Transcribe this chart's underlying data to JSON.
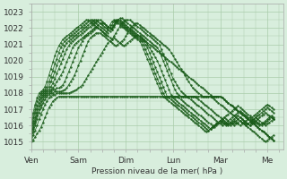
{
  "bg_color": "#d8eedd",
  "grid_color": "#aaccaa",
  "line_color": "#1a5c1a",
  "xlabel": "Pression niveau de la mer( hPa )",
  "ylim": [
    1014.5,
    1023.5
  ],
  "yticks": [
    1015,
    1016,
    1017,
    1018,
    1019,
    1020,
    1021,
    1022,
    1023
  ],
  "day_labels": [
    "Ven",
    "Sam",
    "Dim",
    "Lun",
    "Mar",
    "Me"
  ],
  "day_positions": [
    0,
    24,
    48,
    72,
    96,
    120
  ],
  "xlim": [
    0,
    128
  ],
  "series": [
    [
      1015.0,
      1015.1,
      1015.3,
      1015.5,
      1015.7,
      1015.9,
      1016.2,
      1016.5,
      1016.8,
      1017.1,
      1017.3,
      1017.5,
      1017.6,
      1017.7,
      1017.8,
      1017.8,
      1017.8,
      1017.8,
      1017.8,
      1017.8,
      1017.8,
      1017.8,
      1017.8,
      1017.8,
      1017.8,
      1017.8,
      1017.8,
      1017.8,
      1017.8,
      1017.8,
      1017.8,
      1017.8,
      1017.8,
      1017.8,
      1017.8,
      1017.8,
      1017.8,
      1017.8,
      1017.8,
      1017.8,
      1017.8,
      1017.8,
      1017.8,
      1017.8,
      1017.8,
      1017.8,
      1017.8,
      1017.8,
      1017.8,
      1017.8,
      1017.8,
      1017.8,
      1017.8,
      1017.8,
      1017.8,
      1017.8,
      1017.8,
      1017.8,
      1017.8,
      1017.8,
      1017.8,
      1017.8,
      1017.8,
      1017.8,
      1017.8,
      1017.8,
      1017.8,
      1017.8,
      1017.8,
      1017.8,
      1017.8,
      1017.8,
      1017.8,
      1017.8,
      1017.8,
      1017.8,
      1017.8,
      1017.8,
      1017.8,
      1017.8,
      1017.8,
      1017.8,
      1017.8,
      1017.8,
      1017.8,
      1017.8,
      1017.8,
      1017.8,
      1017.8,
      1017.8,
      1017.8,
      1017.8,
      1017.8,
      1017.8,
      1017.8,
      1017.8,
      1017.75,
      1017.7,
      1017.6,
      1017.5,
      1017.4,
      1017.3,
      1017.2,
      1017.1,
      1017.0,
      1016.9,
      1016.8,
      1016.7,
      1016.6,
      1016.5,
      1016.4,
      1016.3,
      1016.2,
      1016.1,
      1016.0,
      1015.9,
      1015.8,
      1015.7,
      1015.6,
      1015.5,
      1015.4,
      1015.3,
      1015.2,
      1015.1
    ],
    [
      1015.2,
      1015.4,
      1015.7,
      1016.0,
      1016.4,
      1016.7,
      1017.0,
      1017.3,
      1017.5,
      1017.7,
      1017.8,
      1017.9,
      1017.9,
      1018.0,
      1018.0,
      1018.0,
      1018.0,
      1018.0,
      1018.0,
      1018.0,
      1018.05,
      1018.1,
      1018.15,
      1018.2,
      1018.3,
      1018.4,
      1018.5,
      1018.7,
      1018.9,
      1019.1,
      1019.3,
      1019.5,
      1019.7,
      1019.9,
      1020.1,
      1020.3,
      1020.5,
      1020.7,
      1020.9,
      1021.1,
      1021.2,
      1021.3,
      1021.4,
      1021.3,
      1021.2,
      1021.1,
      1021.0,
      1020.9,
      1021.0,
      1021.1,
      1021.2,
      1021.3,
      1021.4,
      1021.5,
      1021.6,
      1021.5,
      1021.4,
      1021.3,
      1021.2,
      1021.1,
      1021.0,
      1020.9,
      1020.8,
      1020.7,
      1020.6,
      1020.5,
      1020.4,
      1020.3,
      1020.2,
      1020.1,
      1020.0,
      1019.9,
      1019.8,
      1019.7,
      1019.6,
      1019.5,
      1019.4,
      1019.3,
      1019.2,
      1019.1,
      1019.0,
      1018.9,
      1018.8,
      1018.7,
      1018.6,
      1018.5,
      1018.4,
      1018.3,
      1018.2,
      1018.1,
      1018.0,
      1017.9,
      1017.8,
      1017.8,
      1017.8,
      1017.8,
      1017.8,
      1017.7,
      1017.6,
      1017.5,
      1017.4,
      1017.3,
      1017.2,
      1017.1,
      1017.0,
      1016.9,
      1016.8,
      1016.7,
      1016.6,
      1016.5,
      1016.4,
      1016.3,
      1016.2,
      1016.1,
      1016.0,
      1015.9,
      1015.8,
      1015.7,
      1015.6,
      1015.5,
      1015.4,
      1015.3,
      1015.2,
      1015.1
    ],
    [
      1015.3,
      1015.6,
      1016.0,
      1016.4,
      1016.8,
      1017.1,
      1017.4,
      1017.6,
      1017.8,
      1017.9,
      1018.0,
      1018.0,
      1018.1,
      1018.1,
      1018.1,
      1018.1,
      1018.15,
      1018.2,
      1018.3,
      1018.5,
      1018.7,
      1018.9,
      1019.1,
      1019.4,
      1019.7,
      1020.0,
      1020.3,
      1020.6,
      1020.9,
      1021.2,
      1021.4,
      1021.5,
      1021.6,
      1021.7,
      1021.7,
      1021.7,
      1021.6,
      1021.5,
      1021.4,
      1021.3,
      1021.2,
      1021.1,
      1021.0,
      1020.9,
      1021.0,
      1021.1,
      1021.2,
      1021.3,
      1021.5,
      1021.7,
      1021.9,
      1022.1,
      1022.2,
      1022.3,
      1022.3,
      1022.2,
      1022.1,
      1022.0,
      1021.9,
      1021.8,
      1021.7,
      1021.6,
      1021.5,
      1021.4,
      1021.3,
      1021.2,
      1021.1,
      1021.0,
      1020.9,
      1020.8,
      1020.7,
      1020.5,
      1020.3,
      1020.1,
      1019.9,
      1019.7,
      1019.5,
      1019.3,
      1019.1,
      1018.9,
      1018.7,
      1018.5,
      1018.3,
      1018.2,
      1018.1,
      1018.0,
      1017.9,
      1017.8,
      1017.8,
      1017.8,
      1017.8,
      1017.8,
      1017.7,
      1017.6,
      1017.5,
      1017.4,
      1017.3,
      1017.2,
      1017.1,
      1017.0,
      1016.9,
      1016.8,
      1016.7,
      1016.6,
      1016.5,
      1016.4,
      1016.3,
      1016.2,
      1016.1,
      1016.0,
      1015.9,
      1015.8,
      1015.7,
      1015.6,
      1015.5,
      1015.4,
      1015.3,
      1015.2,
      1015.1,
      1015.0,
      1015.1,
      1015.2,
      1015.3,
      1015.4
    ],
    [
      1015.4,
      1015.8,
      1016.2,
      1016.6,
      1017.0,
      1017.3,
      1017.6,
      1017.8,
      1017.9,
      1018.0,
      1018.1,
      1018.2,
      1018.2,
      1018.3,
      1018.3,
      1018.4,
      1018.5,
      1018.7,
      1019.0,
      1019.3,
      1019.6,
      1019.9,
      1020.2,
      1020.5,
      1020.8,
      1021.0,
      1021.2,
      1021.4,
      1021.5,
      1021.6,
      1021.7,
      1021.8,
      1021.9,
      1022.0,
      1022.0,
      1021.9,
      1021.8,
      1021.7,
      1021.6,
      1021.5,
      1021.4,
      1021.3,
      1021.5,
      1021.7,
      1021.9,
      1022.1,
      1022.3,
      1022.4,
      1022.5,
      1022.5,
      1022.5,
      1022.4,
      1022.3,
      1022.2,
      1022.1,
      1022.0,
      1021.9,
      1021.8,
      1021.7,
      1021.6,
      1021.5,
      1021.4,
      1021.3,
      1021.2,
      1021.1,
      1021.0,
      1020.7,
      1020.4,
      1020.1,
      1019.8,
      1019.5,
      1019.2,
      1018.9,
      1018.7,
      1018.5,
      1018.3,
      1018.1,
      1018.0,
      1017.9,
      1017.8,
      1017.8,
      1017.8,
      1017.8,
      1017.8,
      1017.7,
      1017.6,
      1017.5,
      1017.4,
      1017.3,
      1017.2,
      1017.1,
      1017.0,
      1016.9,
      1016.8,
      1016.7,
      1016.6,
      1016.5,
      1016.4,
      1016.3,
      1016.2,
      1016.1,
      1016.0,
      1016.1,
      1016.2,
      1016.3,
      1016.4,
      1016.5,
      1016.4,
      1016.3,
      1016.2,
      1016.1,
      1016.0,
      1016.1,
      1016.2,
      1016.3,
      1016.2,
      1016.1,
      1016.0,
      1016.1,
      1016.2,
      1016.3,
      1016.4,
      1016.5,
      1016.4,
      1016.3,
      1016.2
    ],
    [
      1015.5,
      1015.9,
      1016.3,
      1016.8,
      1017.2,
      1017.5,
      1017.8,
      1017.9,
      1018.0,
      1018.1,
      1018.2,
      1018.3,
      1018.5,
      1018.7,
      1018.9,
      1019.1,
      1019.3,
      1019.6,
      1019.9,
      1020.2,
      1020.5,
      1020.8,
      1021.0,
      1021.1,
      1021.2,
      1021.3,
      1021.4,
      1021.5,
      1021.6,
      1021.7,
      1021.8,
      1021.9,
      1022.0,
      1022.1,
      1022.2,
      1022.3,
      1022.3,
      1022.3,
      1022.2,
      1022.1,
      1022.0,
      1021.9,
      1022.1,
      1022.3,
      1022.5,
      1022.6,
      1022.6,
      1022.5,
      1022.4,
      1022.3,
      1022.2,
      1022.1,
      1022.0,
      1021.9,
      1021.8,
      1021.7,
      1021.6,
      1021.5,
      1021.4,
      1021.3,
      1021.2,
      1021.1,
      1021.0,
      1020.9,
      1020.8,
      1020.6,
      1020.3,
      1020.0,
      1019.7,
      1019.4,
      1019.1,
      1018.8,
      1018.5,
      1018.2,
      1018.0,
      1017.9,
      1017.8,
      1017.8,
      1017.8,
      1017.8,
      1017.7,
      1017.6,
      1017.5,
      1017.4,
      1017.3,
      1017.2,
      1017.1,
      1017.0,
      1016.9,
      1016.8,
      1016.7,
      1016.6,
      1016.5,
      1016.4,
      1016.3,
      1016.2,
      1016.1,
      1016.0,
      1016.1,
      1016.2,
      1016.3,
      1016.2,
      1016.1,
      1016.0,
      1016.1,
      1016.2,
      1016.3,
      1016.2,
      1016.1,
      1016.0,
      1016.1,
      1016.2,
      1016.3,
      1016.4,
      1016.5,
      1016.4,
      1016.3,
      1016.2,
      1016.1,
      1016.0,
      1016.1,
      1016.2,
      1016.3,
      1016.4
    ],
    [
      1015.6,
      1016.1,
      1016.5,
      1017.0,
      1017.4,
      1017.7,
      1017.9,
      1018.0,
      1018.1,
      1018.2,
      1018.4,
      1018.6,
      1018.9,
      1019.2,
      1019.5,
      1019.8,
      1020.1,
      1020.4,
      1020.7,
      1020.9,
      1021.1,
      1021.2,
      1021.3,
      1021.4,
      1021.5,
      1021.6,
      1021.7,
      1021.8,
      1021.9,
      1022.0,
      1022.1,
      1022.2,
      1022.3,
      1022.4,
      1022.5,
      1022.5,
      1022.4,
      1022.3,
      1022.2,
      1022.1,
      1022.0,
      1021.9,
      1022.2,
      1022.4,
      1022.5,
      1022.5,
      1022.4,
      1022.3,
      1022.2,
      1022.1,
      1022.0,
      1021.9,
      1021.8,
      1021.7,
      1021.6,
      1021.5,
      1021.4,
      1021.3,
      1021.2,
      1021.0,
      1020.8,
      1020.6,
      1020.4,
      1020.2,
      1020.0,
      1019.7,
      1019.4,
      1019.1,
      1018.8,
      1018.5,
      1018.2,
      1017.9,
      1017.8,
      1017.8,
      1017.8,
      1017.7,
      1017.6,
      1017.5,
      1017.4,
      1017.3,
      1017.2,
      1017.1,
      1017.0,
      1016.9,
      1016.8,
      1016.7,
      1016.6,
      1016.5,
      1016.4,
      1016.3,
      1016.2,
      1016.1,
      1016.0,
      1015.9,
      1016.0,
      1016.1,
      1016.2,
      1016.3,
      1016.2,
      1016.1,
      1016.0,
      1016.1,
      1016.2,
      1016.3,
      1016.2,
      1016.1,
      1016.0,
      1016.1,
      1016.2,
      1016.3,
      1016.4,
      1016.5,
      1016.4,
      1016.3,
      1016.2,
      1016.1,
      1016.0,
      1016.1,
      1016.2,
      1016.3,
      1016.4,
      1016.5,
      1016.6,
      1016.5
    ],
    [
      1015.8,
      1016.3,
      1016.8,
      1017.2,
      1017.6,
      1017.9,
      1018.0,
      1018.1,
      1018.2,
      1018.4,
      1018.7,
      1019.0,
      1019.3,
      1019.7,
      1020.0,
      1020.3,
      1020.6,
      1020.9,
      1021.1,
      1021.2,
      1021.3,
      1021.4,
      1021.5,
      1021.6,
      1021.7,
      1021.8,
      1021.9,
      1022.0,
      1022.1,
      1022.2,
      1022.3,
      1022.4,
      1022.5,
      1022.5,
      1022.4,
      1022.3,
      1022.2,
      1022.1,
      1022.0,
      1021.9,
      1021.8,
      1022.0,
      1022.2,
      1022.4,
      1022.5,
      1022.4,
      1022.3,
      1022.2,
      1022.1,
      1022.0,
      1021.9,
      1021.8,
      1021.7,
      1021.6,
      1021.5,
      1021.4,
      1021.3,
      1021.2,
      1021.0,
      1020.8,
      1020.5,
      1020.2,
      1019.9,
      1019.6,
      1019.3,
      1019.0,
      1018.7,
      1018.4,
      1018.1,
      1017.8,
      1017.8,
      1017.8,
      1017.7,
      1017.6,
      1017.5,
      1017.4,
      1017.3,
      1017.2,
      1017.1,
      1017.0,
      1016.9,
      1016.8,
      1016.7,
      1016.6,
      1016.5,
      1016.4,
      1016.3,
      1016.2,
      1016.1,
      1016.0,
      1015.9,
      1015.8,
      1015.9,
      1016.0,
      1016.1,
      1016.2,
      1016.3,
      1016.2,
      1016.1,
      1016.0,
      1016.1,
      1016.2,
      1016.3,
      1016.4,
      1016.5,
      1016.6,
      1016.5,
      1016.4,
      1016.3,
      1016.2,
      1016.1,
      1016.0,
      1016.1,
      1016.2,
      1016.3,
      1016.4,
      1016.5,
      1016.6,
      1016.7,
      1016.8,
      1016.7,
      1016.6,
      1016.5,
      1016.4
    ],
    [
      1016.0,
      1016.5,
      1017.0,
      1017.5,
      1017.8,
      1018.0,
      1018.1,
      1018.2,
      1018.4,
      1018.7,
      1019.0,
      1019.4,
      1019.8,
      1020.1,
      1020.5,
      1020.8,
      1021.0,
      1021.2,
      1021.3,
      1021.4,
      1021.5,
      1021.6,
      1021.7,
      1021.8,
      1021.9,
      1022.0,
      1022.1,
      1022.2,
      1022.3,
      1022.4,
      1022.5,
      1022.5,
      1022.4,
      1022.3,
      1022.2,
      1022.1,
      1022.0,
      1021.9,
      1021.8,
      1021.7,
      1022.0,
      1022.2,
      1022.4,
      1022.5,
      1022.4,
      1022.3,
      1022.2,
      1022.1,
      1022.0,
      1021.9,
      1021.8,
      1021.7,
      1021.6,
      1021.5,
      1021.4,
      1021.3,
      1021.2,
      1021.0,
      1020.7,
      1020.4,
      1020.1,
      1019.8,
      1019.5,
      1019.2,
      1018.9,
      1018.6,
      1018.3,
      1018.0,
      1017.8,
      1017.8,
      1017.7,
      1017.6,
      1017.5,
      1017.4,
      1017.3,
      1017.2,
      1017.1,
      1017.0,
      1016.9,
      1016.8,
      1016.7,
      1016.6,
      1016.5,
      1016.4,
      1016.3,
      1016.2,
      1016.1,
      1016.0,
      1015.9,
      1015.8,
      1015.7,
      1015.8,
      1015.9,
      1016.0,
      1016.1,
      1016.2,
      1016.3,
      1016.4,
      1016.5,
      1016.4,
      1016.3,
      1016.4,
      1016.5,
      1016.6,
      1016.7,
      1016.8,
      1016.9,
      1016.8,
      1016.7,
      1016.6,
      1016.5,
      1016.4,
      1016.3,
      1016.4,
      1016.5,
      1016.6,
      1016.7,
      1016.8,
      1016.9,
      1017.0,
      1017.1,
      1017.0,
      1016.9,
      1016.8
    ],
    [
      1016.2,
      1016.8,
      1017.3,
      1017.7,
      1018.0,
      1018.1,
      1018.2,
      1018.4,
      1018.7,
      1019.1,
      1019.5,
      1019.9,
      1020.3,
      1020.6,
      1020.9,
      1021.1,
      1021.3,
      1021.4,
      1021.5,
      1021.6,
      1021.7,
      1021.8,
      1021.9,
      1022.0,
      1022.1,
      1022.2,
      1022.3,
      1022.4,
      1022.5,
      1022.5,
      1022.4,
      1022.3,
      1022.2,
      1022.1,
      1022.0,
      1021.9,
      1021.8,
      1021.7,
      1021.6,
      1022.0,
      1022.2,
      1022.4,
      1022.5,
      1022.4,
      1022.3,
      1022.2,
      1022.1,
      1022.0,
      1021.9,
      1021.8,
      1021.7,
      1021.6,
      1021.5,
      1021.4,
      1021.3,
      1021.2,
      1021.0,
      1020.7,
      1020.4,
      1020.1,
      1019.8,
      1019.5,
      1019.2,
      1018.9,
      1018.6,
      1018.3,
      1018.0,
      1017.8,
      1017.7,
      1017.6,
      1017.5,
      1017.4,
      1017.3,
      1017.2,
      1017.1,
      1017.0,
      1016.9,
      1016.8,
      1016.7,
      1016.6,
      1016.5,
      1016.4,
      1016.3,
      1016.2,
      1016.1,
      1016.0,
      1015.9,
      1015.8,
      1015.7,
      1015.6,
      1015.7,
      1015.8,
      1015.9,
      1016.0,
      1016.1,
      1016.2,
      1016.3,
      1016.4,
      1016.5,
      1016.6,
      1016.7,
      1016.8,
      1016.9,
      1017.0,
      1017.1,
      1017.2,
      1017.1,
      1017.0,
      1016.9,
      1016.8,
      1016.7,
      1016.6,
      1016.5,
      1016.6,
      1016.7,
      1016.8,
      1016.9,
      1017.0,
      1017.1,
      1017.2,
      1017.3,
      1017.2,
      1017.1,
      1017.0
    ]
  ]
}
